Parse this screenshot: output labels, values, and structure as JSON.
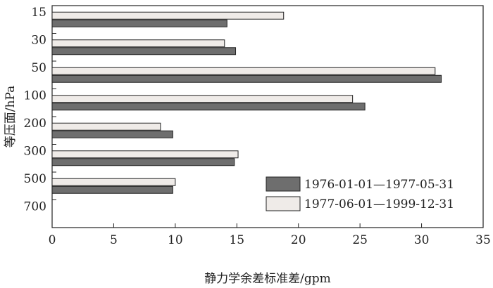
{
  "chart_data": {
    "type": "bar",
    "orientation": "horizontal",
    "categories": [
      "15",
      "30",
      "50",
      "100",
      "200",
      "300",
      "500",
      "700"
    ],
    "series": [
      {
        "name": "1976-01-01—1977-05-31",
        "color": "#6e6e6e",
        "values": [
          14.2,
          14.9,
          31.6,
          25.4,
          9.8,
          14.8,
          9.8,
          0
        ]
      },
      {
        "name": "1977-06-01—1999-12-31",
        "color": "#efebe8",
        "values": [
          18.8,
          14.0,
          31.1,
          24.4,
          8.8,
          15.1,
          10.0,
          0
        ]
      }
    ],
    "bar_value_order": [
      "1976-01-01—1977-05-31",
      "1977-06-01—1999-12-31"
    ],
    "xlabel": "静力学余差标准差/gpm",
    "ylabel": "等压面/hPa",
    "xlim": [
      0,
      35
    ],
    "xticks": [
      "0",
      "5",
      "10",
      "15",
      "20",
      "25",
      "30",
      "35"
    ],
    "grid": false,
    "legend_position": "bottom-right"
  }
}
